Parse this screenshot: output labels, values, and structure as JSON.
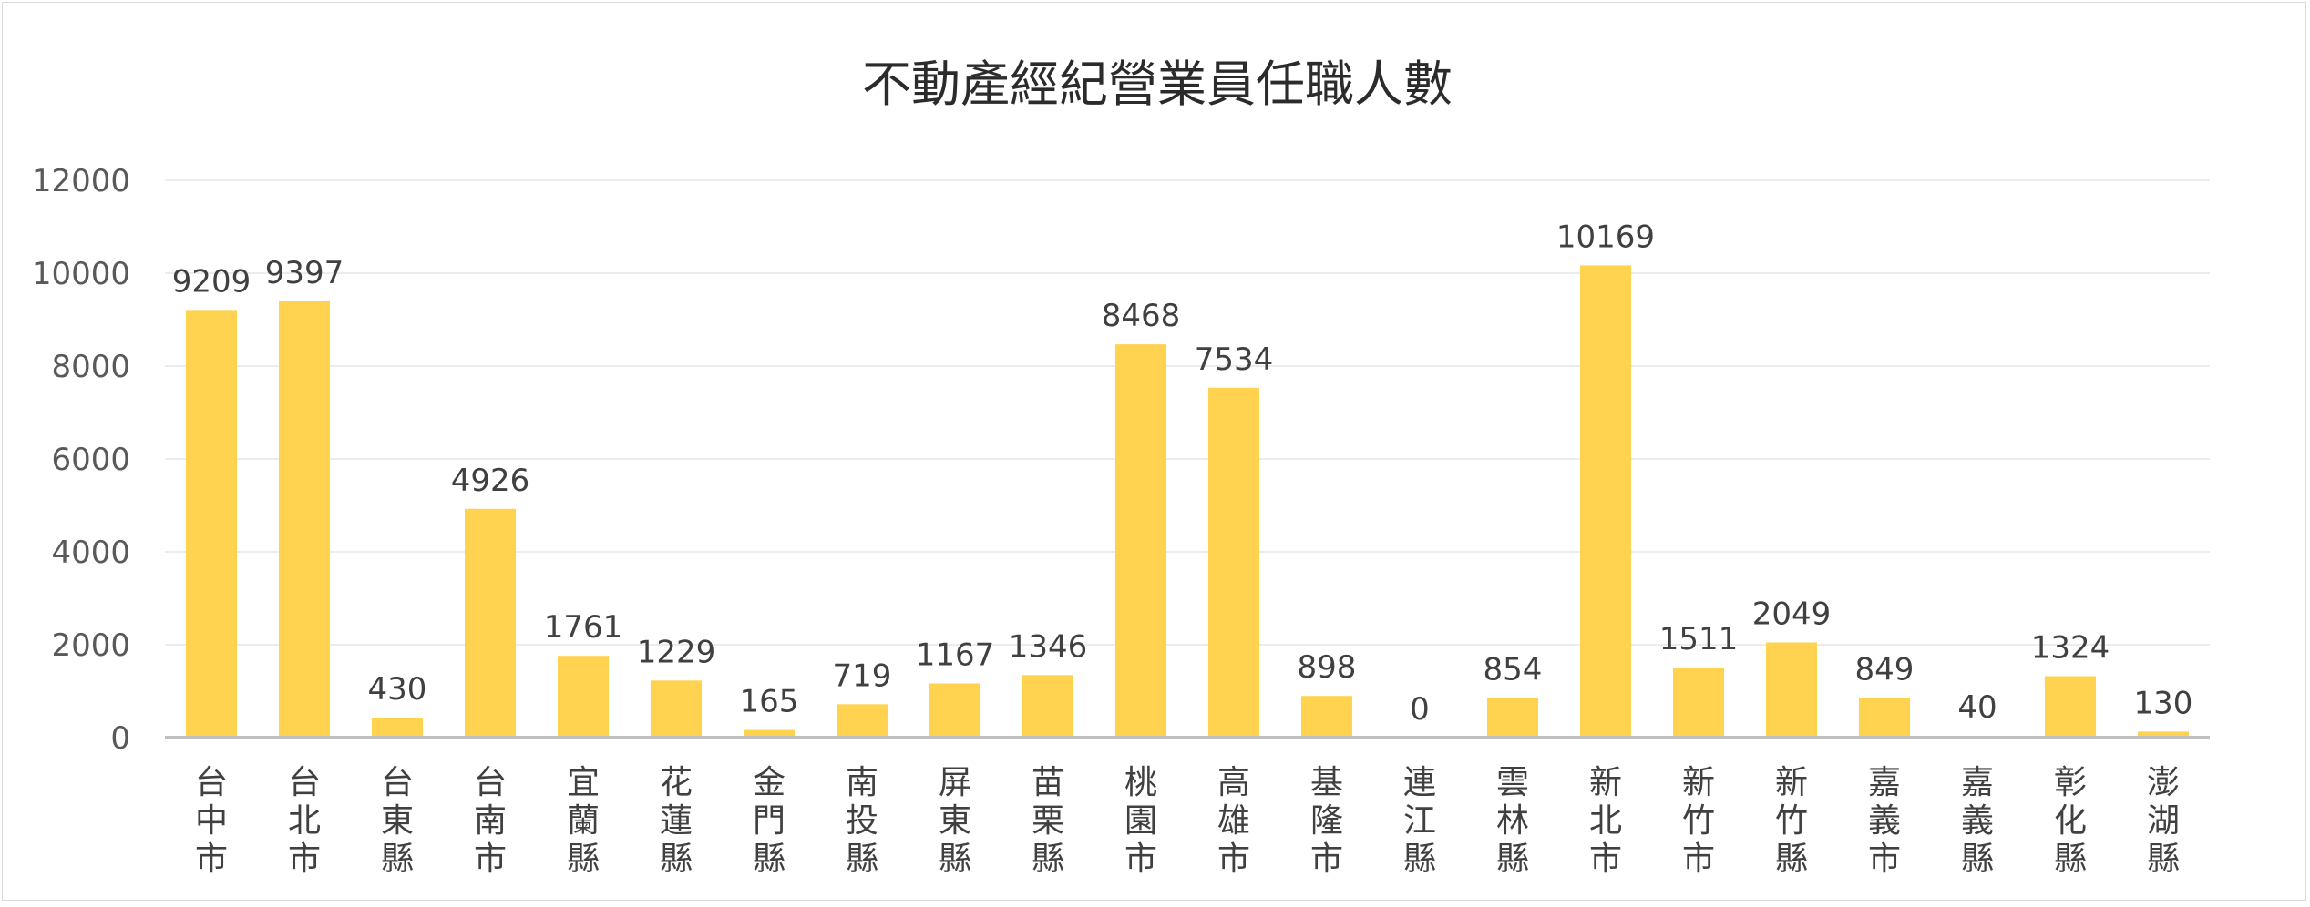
{
  "chart_data": {
    "type": "bar",
    "title": "不動產經紀營業員任職人數",
    "xlabel": "",
    "ylabel": "",
    "ylim": [
      0,
      12000
    ],
    "yticks": [
      0,
      2000,
      4000,
      6000,
      8000,
      10000,
      12000
    ],
    "grid": true,
    "legend": "none",
    "bar_color": "#ffd34f",
    "categories": [
      "台中市",
      "台北市",
      "台東縣",
      "台南市",
      "宜蘭縣",
      "花蓮縣",
      "金門縣",
      "南投縣",
      "屏東縣",
      "苗栗縣",
      "桃園市",
      "高雄市",
      "基隆市",
      "連江縣",
      "雲林縣",
      "新北市",
      "新竹市",
      "新竹縣",
      "嘉義市",
      "嘉義縣",
      "彰化縣",
      "澎湖縣"
    ],
    "values": [
      9209,
      9397,
      430,
      4926,
      1761,
      1229,
      165,
      719,
      1167,
      1346,
      8468,
      7534,
      898,
      0,
      854,
      10169,
      1511,
      2049,
      849,
      40,
      1324,
      130
    ]
  }
}
